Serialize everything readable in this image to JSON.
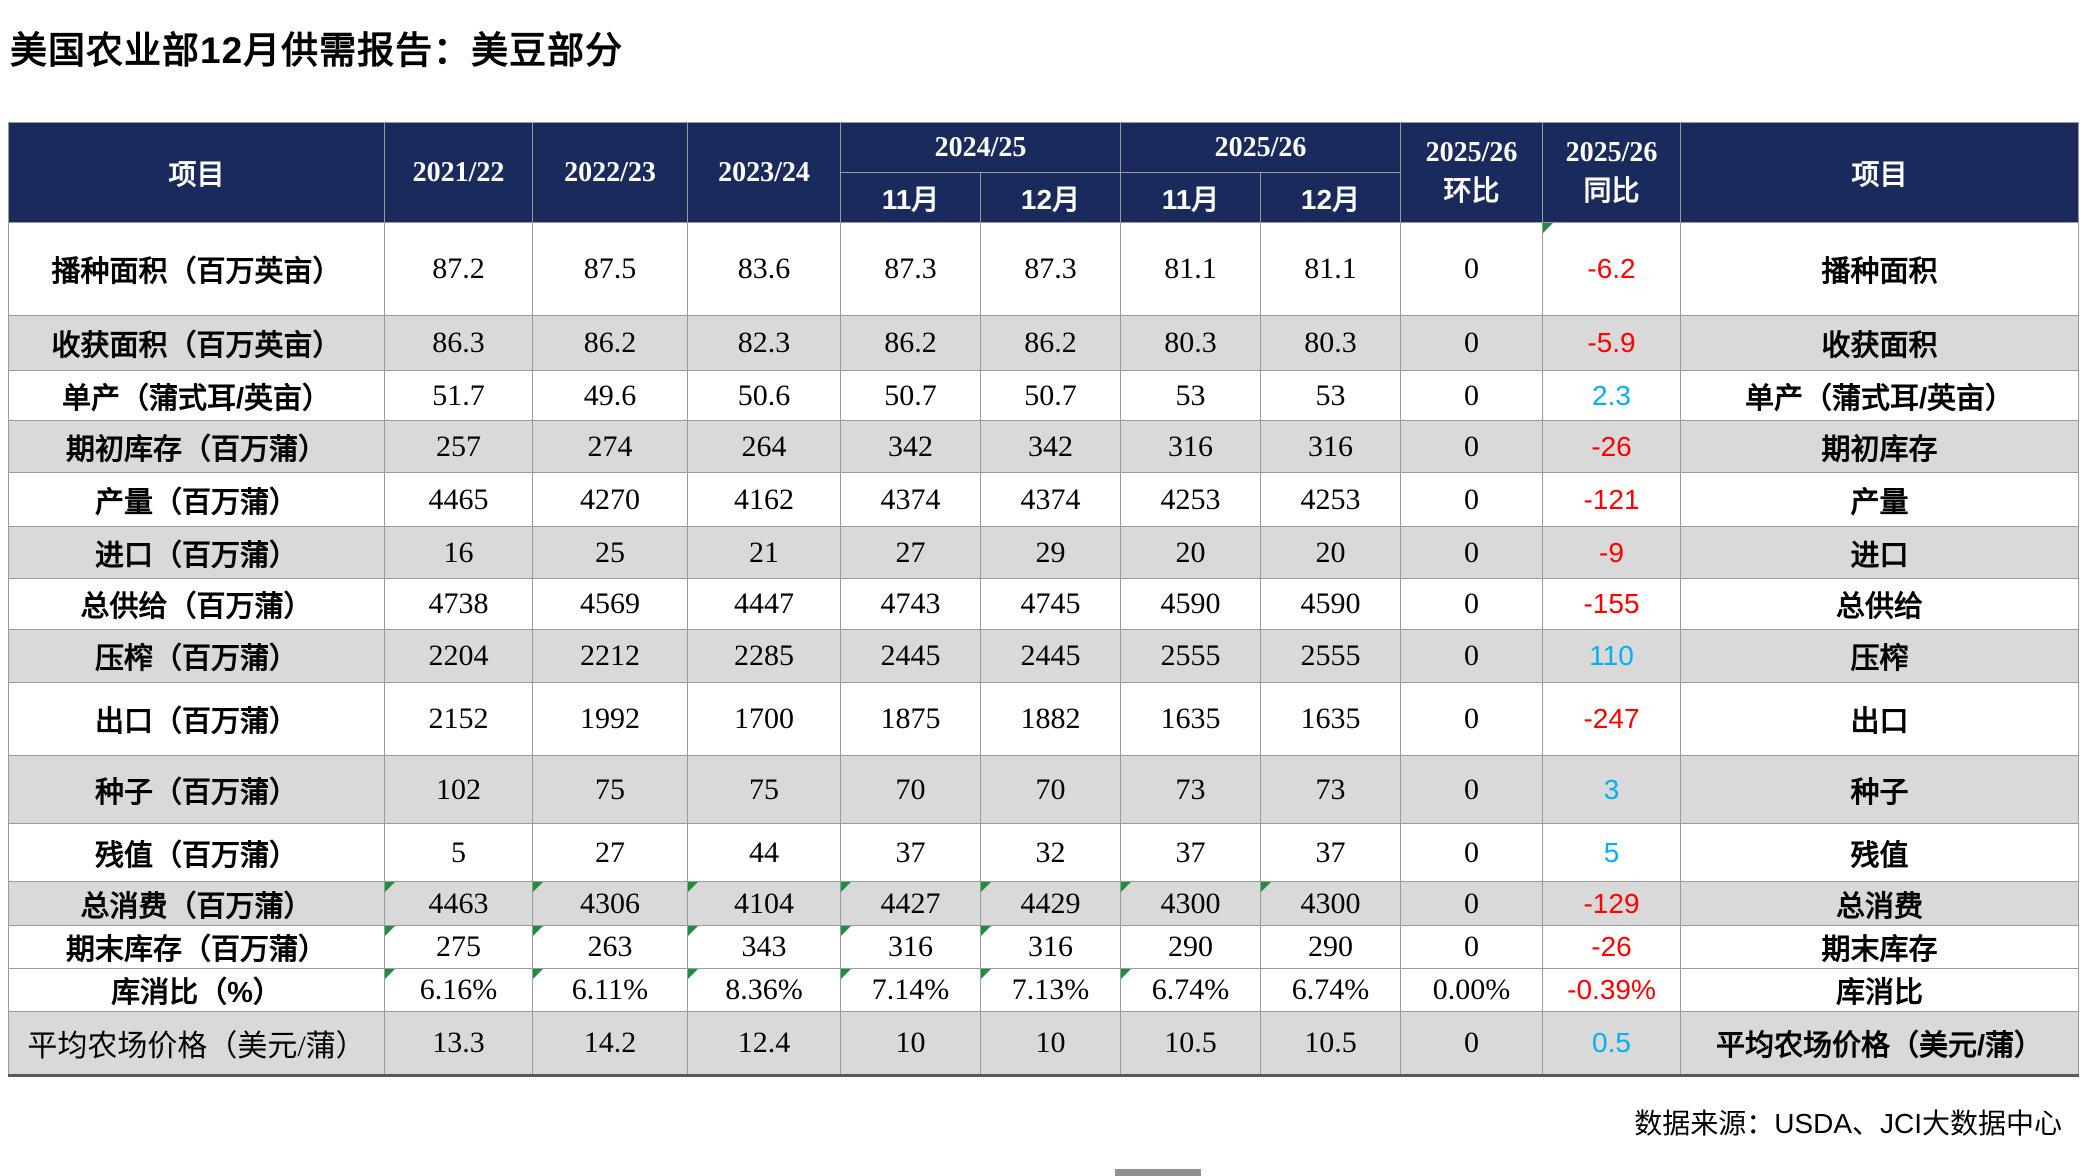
{
  "title": "美国农业部12月供需报告：美豆部分",
  "footer": {
    "source": "数据来源：USDA、JCI大数据中心"
  },
  "colors": {
    "header_bg": "#1B2A5C",
    "header_highlight_red": "#FF0000",
    "value_negative_red": "#FF0000",
    "value_positive_blue": "#00B0F0",
    "row_shade_gray": "#D9D9D9",
    "grid_line": "#9B9B9B",
    "error_indicator_green": "#1E8E3E"
  },
  "table": {
    "header": {
      "item_left": "项目",
      "year_cols": [
        "2021/22",
        "2022/23",
        "2023/24"
      ],
      "groups": [
        {
          "label": "2024/25",
          "months": [
            "11月",
            "12月"
          ]
        },
        {
          "label": "2025/26",
          "months": [
            "11月",
            "12月"
          ]
        }
      ],
      "mom_line1": "2025/26",
      "mom_line2": "环比",
      "yoy_line1": "2025/26",
      "yoy_line2": "同比",
      "item_right": "项目"
    },
    "rows": [
      {
        "label": "播种面积（百万英亩）",
        "values": [
          "87.2",
          "87.5",
          "83.6",
          "87.3",
          "87.3",
          "81.1",
          "81.1"
        ],
        "mom": "0",
        "yoy": "-6.2",
        "yoy_color": "red",
        "green_yoy": true,
        "right": "播种面积"
      },
      {
        "label": "收获面积（百万英亩）",
        "values": [
          "86.3",
          "86.2",
          "82.3",
          "86.2",
          "86.2",
          "80.3",
          "80.3"
        ],
        "mom": "0",
        "yoy": "-5.9",
        "yoy_color": "red",
        "right": "收获面积"
      },
      {
        "label": "单产（蒲式耳/英亩）",
        "values": [
          "51.7",
          "49.6",
          "50.6",
          "50.7",
          "50.7",
          "53",
          "53"
        ],
        "mom": "0",
        "yoy": "2.3",
        "yoy_color": "blue",
        "right": "单产（蒲式耳/英亩）"
      },
      {
        "label": "期初库存（百万蒲）",
        "values": [
          "257",
          "274",
          "264",
          "342",
          "342",
          "316",
          "316"
        ],
        "mom": "0",
        "yoy": "-26",
        "yoy_color": "red",
        "right": "期初库存"
      },
      {
        "label": "产量（百万蒲）",
        "values": [
          "4465",
          "4270",
          "4162",
          "4374",
          "4374",
          "4253",
          "4253"
        ],
        "mom": "0",
        "yoy": "-121",
        "yoy_color": "red",
        "right": "产量"
      },
      {
        "label": "进口（百万蒲）",
        "values": [
          "16",
          "25",
          "21",
          "27",
          "29",
          "20",
          "20"
        ],
        "mom": "0",
        "yoy": "-9",
        "yoy_color": "red",
        "right": "进口"
      },
      {
        "label": "总供给（百万蒲）",
        "values": [
          "4738",
          "4569",
          "4447",
          "4743",
          "4745",
          "4590",
          "4590"
        ],
        "mom": "0",
        "yoy": "-155",
        "yoy_color": "red",
        "right": "总供给"
      },
      {
        "label": "压榨（百万蒲）",
        "values": [
          "2204",
          "2212",
          "2285",
          "2445",
          "2445",
          "2555",
          "2555"
        ],
        "mom": "0",
        "yoy": "110",
        "yoy_color": "blue",
        "right": "压榨"
      },
      {
        "label": "出口（百万蒲）",
        "values": [
          "2152",
          "1992",
          "1700",
          "1875",
          "1882",
          "1635",
          "1635"
        ],
        "mom": "0",
        "yoy": "-247",
        "yoy_color": "red",
        "right": "出口"
      },
      {
        "label": "种子（百万蒲）",
        "values": [
          "102",
          "75",
          "75",
          "70",
          "70",
          "73",
          "73"
        ],
        "mom": "0",
        "yoy": "3",
        "yoy_color": "blue",
        "right": "种子"
      },
      {
        "label": "残值（百万蒲）",
        "values": [
          "5",
          "27",
          "44",
          "37",
          "32",
          "37",
          "37"
        ],
        "mom": "0",
        "yoy": "5",
        "yoy_color": "blue",
        "right": "残值"
      },
      {
        "label": "总消费（百万蒲）",
        "values": [
          "4463",
          "4306",
          "4104",
          "4427",
          "4429",
          "4300",
          "4300"
        ],
        "mom": "0",
        "yoy": "-129",
        "yoy_color": "red",
        "green_cols": [
          0,
          1,
          2,
          3,
          4,
          5,
          6
        ],
        "right": "总消费"
      },
      {
        "label": "期末库存（百万蒲）",
        "values": [
          "275",
          "263",
          "343",
          "316",
          "316",
          "290",
          "290"
        ],
        "mom": "0",
        "yoy": "-26",
        "yoy_color": "red",
        "green_cols": [
          0,
          1,
          2,
          3,
          4
        ],
        "right": "期末库存"
      },
      {
        "label": "库消比（%）",
        "values": [
          "6.16%",
          "6.11%",
          "8.36%",
          "7.14%",
          "7.13%",
          "6.74%",
          "6.74%"
        ],
        "mom": "0.00%",
        "yoy": "-0.39%",
        "yoy_color": "red",
        "green_cols": [
          0,
          1,
          2,
          3,
          4,
          5
        ],
        "right": "库消比"
      },
      {
        "label": "平均农场价格（美元/蒲）",
        "values": [
          "13.3",
          "14.2",
          "12.4",
          "10",
          "10",
          "10.5",
          "10.5"
        ],
        "mom": "0",
        "yoy": "0.5",
        "yoy_color": "blue",
        "right": "平均农场价格（美元/蒲）"
      }
    ]
  }
}
